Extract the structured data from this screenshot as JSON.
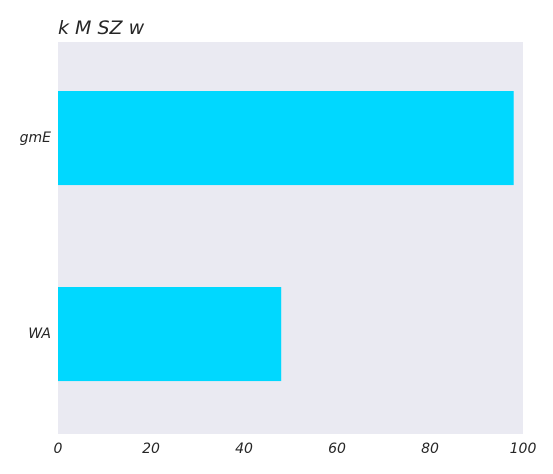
{
  "chart_data": {
    "type": "bar",
    "orientation": "horizontal",
    "title": "k M SZ w",
    "categories": [
      "gmE",
      "WA"
    ],
    "values": [
      98,
      48
    ],
    "xlabel": "",
    "ylabel": "",
    "xlim": [
      0,
      100
    ],
    "xticks": [
      "0",
      "20",
      "40",
      "60",
      "80",
      "100"
    ],
    "grid": false,
    "legend": "none",
    "colors": {
      "bar": "#00d8ff",
      "plot_background": "#eaeaf2",
      "text": "#262626"
    }
  }
}
